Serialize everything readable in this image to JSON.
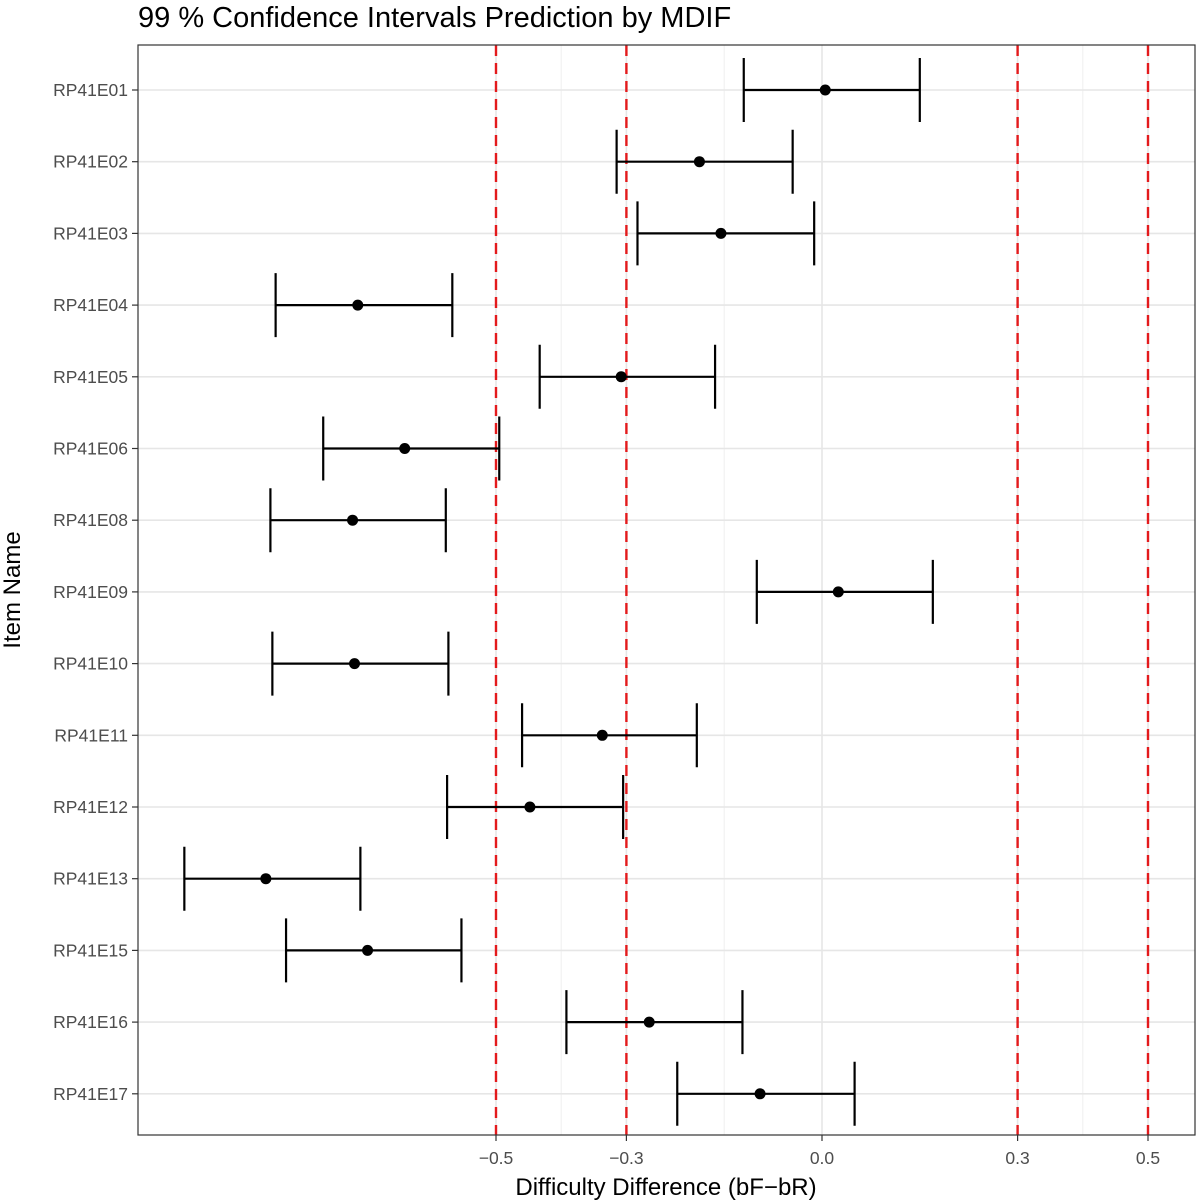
{
  "chart_data": {
    "type": "errorbar",
    "title": "99 % Confidence Intervals Prediction by MDIF",
    "xlabel": "Difficulty Difference (bF−bR)",
    "ylabel": "Item Name",
    "xlim": [
      -1.0,
      0.57
    ],
    "x_ticks": [
      {
        "value": -0.5,
        "label": "−0.5"
      },
      {
        "value": -0.3,
        "label": "−0.3"
      },
      {
        "value": 0.0,
        "label": "0.0"
      },
      {
        "value": 0.3,
        "label": "0.3"
      },
      {
        "value": 0.5,
        "label": "0.5"
      }
    ],
    "x_minor_gridlines": [
      -0.4,
      -0.15,
      0.4
    ],
    "reference_lines": [
      -0.5,
      -0.3,
      0.3,
      0.5
    ],
    "reference_line_color": "#e31a1c",
    "grid": true,
    "items": [
      {
        "name": "RP41E01",
        "estimate": 0.005,
        "lower": -0.12,
        "upper": 0.15
      },
      {
        "name": "RP41E02",
        "estimate": -0.188,
        "lower": -0.315,
        "upper": -0.045
      },
      {
        "name": "RP41E03",
        "estimate": -0.155,
        "lower": -0.283,
        "upper": -0.012
      },
      {
        "name": "RP41E04",
        "estimate": -0.712,
        "lower": -0.838,
        "upper": -0.567
      },
      {
        "name": "RP41E05",
        "estimate": -0.308,
        "lower": -0.433,
        "upper": -0.164
      },
      {
        "name": "RP41E06",
        "estimate": -0.64,
        "lower": -0.765,
        "upper": -0.495
      },
      {
        "name": "RP41E08",
        "estimate": -0.72,
        "lower": -0.846,
        "upper": -0.577
      },
      {
        "name": "RP41E09",
        "estimate": 0.025,
        "lower": -0.1,
        "upper": 0.17
      },
      {
        "name": "RP41E10",
        "estimate": -0.717,
        "lower": -0.843,
        "upper": -0.573
      },
      {
        "name": "RP41E11",
        "estimate": -0.337,
        "lower": -0.46,
        "upper": -0.192
      },
      {
        "name": "RP41E12",
        "estimate": -0.448,
        "lower": -0.575,
        "upper": -0.305
      },
      {
        "name": "RP41E13",
        "estimate": -0.853,
        "lower": -0.978,
        "upper": -0.708
      },
      {
        "name": "RP41E15",
        "estimate": -0.697,
        "lower": -0.822,
        "upper": -0.553
      },
      {
        "name": "RP41E16",
        "estimate": -0.265,
        "lower": -0.392,
        "upper": -0.122
      },
      {
        "name": "RP41E17",
        "estimate": -0.095,
        "lower": -0.222,
        "upper": 0.05
      }
    ]
  }
}
